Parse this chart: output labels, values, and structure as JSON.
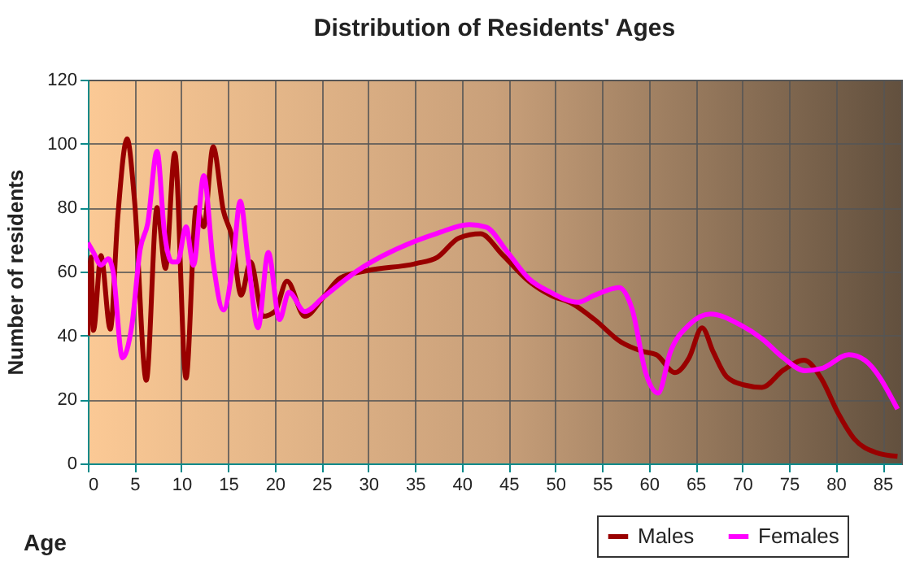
{
  "chart_data": {
    "type": "line",
    "title": "Distribution of Residents' Ages",
    "xlabel": "Age",
    "ylabel": "Number of residents",
    "xlim": [
      0,
      87
    ],
    "ylim": [
      0,
      120
    ],
    "xticks": [
      0,
      5,
      10,
      15,
      20,
      25,
      30,
      35,
      40,
      45,
      50,
      55,
      60,
      65,
      70,
      75,
      80,
      85
    ],
    "yticks": [
      0,
      20,
      40,
      60,
      80,
      100,
      120
    ],
    "grid": true,
    "legend": "bottom right",
    "series": [
      {
        "name": "Males",
        "color": "#990000",
        "x": [
          0,
          0.35,
          0.6,
          1.4,
          2.4,
          3.2,
          4.2,
          5,
          6.25,
          7.4,
          8.3,
          9.3,
          10.5,
          11.6,
          12.4,
          13.4,
          14.5,
          15.4,
          16.4,
          17.4,
          18.75,
          20,
          21.3,
          23.2,
          25.2,
          27,
          29.9,
          35.1,
          37.4,
          39.7,
          42,
          44.3,
          47.2,
          49.5,
          51.8,
          54.2,
          57,
          59.4,
          60.8,
          62.8,
          64.3,
          65.7,
          66.9,
          68.3,
          70.1,
          72.1,
          74.4,
          76.6,
          78.5,
          80.2,
          82,
          84.3,
          86.6
        ],
        "values": [
          40,
          64.5,
          41.6,
          65,
          42,
          77,
          101.5,
          82,
          26,
          80,
          61,
          97,
          26.7,
          80,
          74,
          99,
          79,
          71,
          52.6,
          63,
          46,
          47.5,
          57,
          46,
          52,
          58,
          60.3,
          62.5,
          64.5,
          70.5,
          71.8,
          65.4,
          56.9,
          52.6,
          50,
          45,
          38,
          35,
          34,
          28.4,
          33,
          42.4,
          34.8,
          27.2,
          24.6,
          23.8,
          29.2,
          32.3,
          26.3,
          16,
          7.6,
          3.4,
          2.2
        ]
      },
      {
        "name": "Females",
        "color": "#ff00ff",
        "x": [
          0,
          0.6,
          1.4,
          2.2,
          2.7,
          3.7,
          4.7,
          5.6,
          6.4,
          7.4,
          8.2,
          9,
          9.6,
          10.5,
          11.3,
          12.4,
          13.4,
          14.5,
          15.5,
          16.3,
          17.1,
          18.2,
          19.3,
          20.5,
          21.5,
          23.2,
          25.2,
          28.7,
          35.1,
          37.4,
          40.8,
          42.6,
          44.9,
          47.2,
          49.5,
          52.4,
          54.2,
          56.8,
          58.2,
          59.7,
          61,
          62.3,
          64.3,
          66.6,
          69.8,
          72.1,
          74.4,
          76.7,
          78.5,
          81.4,
          83.1,
          86.6
        ],
        "values": [
          69,
          66,
          62,
          64,
          60,
          33,
          43,
          67,
          75,
          97.6,
          72,
          63,
          63,
          74,
          62,
          90,
          63,
          48,
          62,
          82,
          65,
          42.4,
          66,
          45,
          53.5,
          47.5,
          52,
          60,
          69.6,
          72,
          74.7,
          73.9,
          66,
          57.7,
          53.5,
          50.4,
          52.6,
          55,
          48.4,
          28,
          22,
          34.8,
          43.3,
          46.7,
          43.3,
          39,
          33,
          29,
          29.7,
          34,
          32.3,
          17
        ]
      }
    ]
  }
}
